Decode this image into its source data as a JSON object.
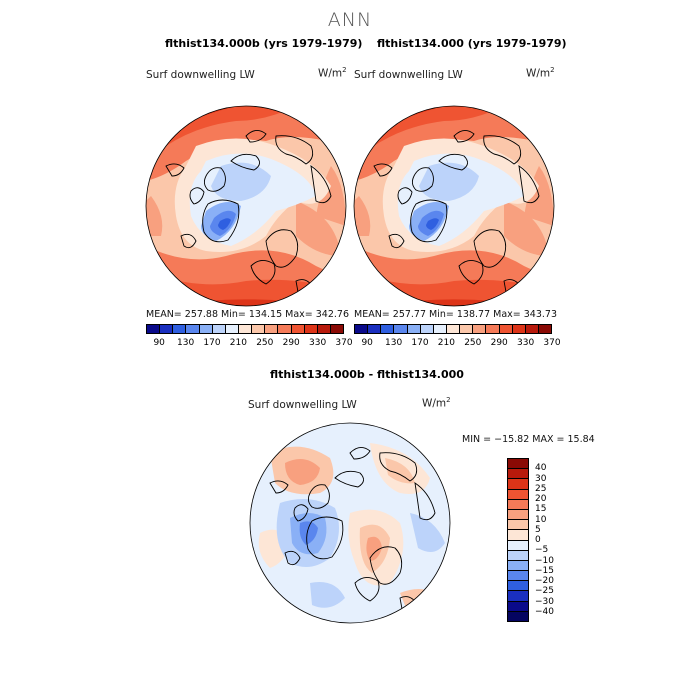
{
  "title": "ANN",
  "panels": [
    {
      "case_title": "flthist134.000b (yrs 1979-1979)",
      "variable": "Surf downwelling LW",
      "units_base": "W/m",
      "units_exp": "2",
      "stats": "MEAN= 257.88   Min= 134.15   Max= 342.76"
    },
    {
      "case_title": "flthist134.000 (yrs 1979-1979)",
      "variable": "Surf downwelling LW",
      "units_base": "W/m",
      "units_exp": "2",
      "stats": "MEAN= 257.77   Min= 138.77   Max= 343.73"
    }
  ],
  "abs_colorbar": {
    "colors": [
      "#0a0a8a",
      "#1a2fbf",
      "#2f5fe0",
      "#5a86ee",
      "#8ab0f6",
      "#bcd3fa",
      "#e6f0fd",
      "#fde6d6",
      "#fbc7aa",
      "#f8a07f",
      "#f57a58",
      "#ef5432",
      "#dd3418",
      "#b81a0c",
      "#8a0a05"
    ],
    "tick_labels": [
      "90",
      "130",
      "170",
      "210",
      "250",
      "290",
      "330",
      "370"
    ]
  },
  "diff_panel": {
    "case_title": "flthist134.000b - flthist134.000",
    "variable": "Surf downwelling LW",
    "units_base": "W/m",
    "units_exp": "2",
    "stats": "MIN = −15.82  MAX =  15.84"
  },
  "diff_colorbar": {
    "colors": [
      "#8a0a05",
      "#b81a0c",
      "#dd3418",
      "#ef5432",
      "#f57a58",
      "#f8a07f",
      "#fbc7aa",
      "#fde6d6",
      "#e6f0fd",
      "#bcd3fa",
      "#8ab0f6",
      "#5a86ee",
      "#2f5fe0",
      "#1a2fbf",
      "#0a0a8a",
      "#050560"
    ],
    "tick_labels": [
      "40",
      "30",
      "25",
      "20",
      "15",
      "10",
      "5",
      "0",
      "−5",
      "−10",
      "−15",
      "−20",
      "−25",
      "−30",
      "−40"
    ]
  }
}
